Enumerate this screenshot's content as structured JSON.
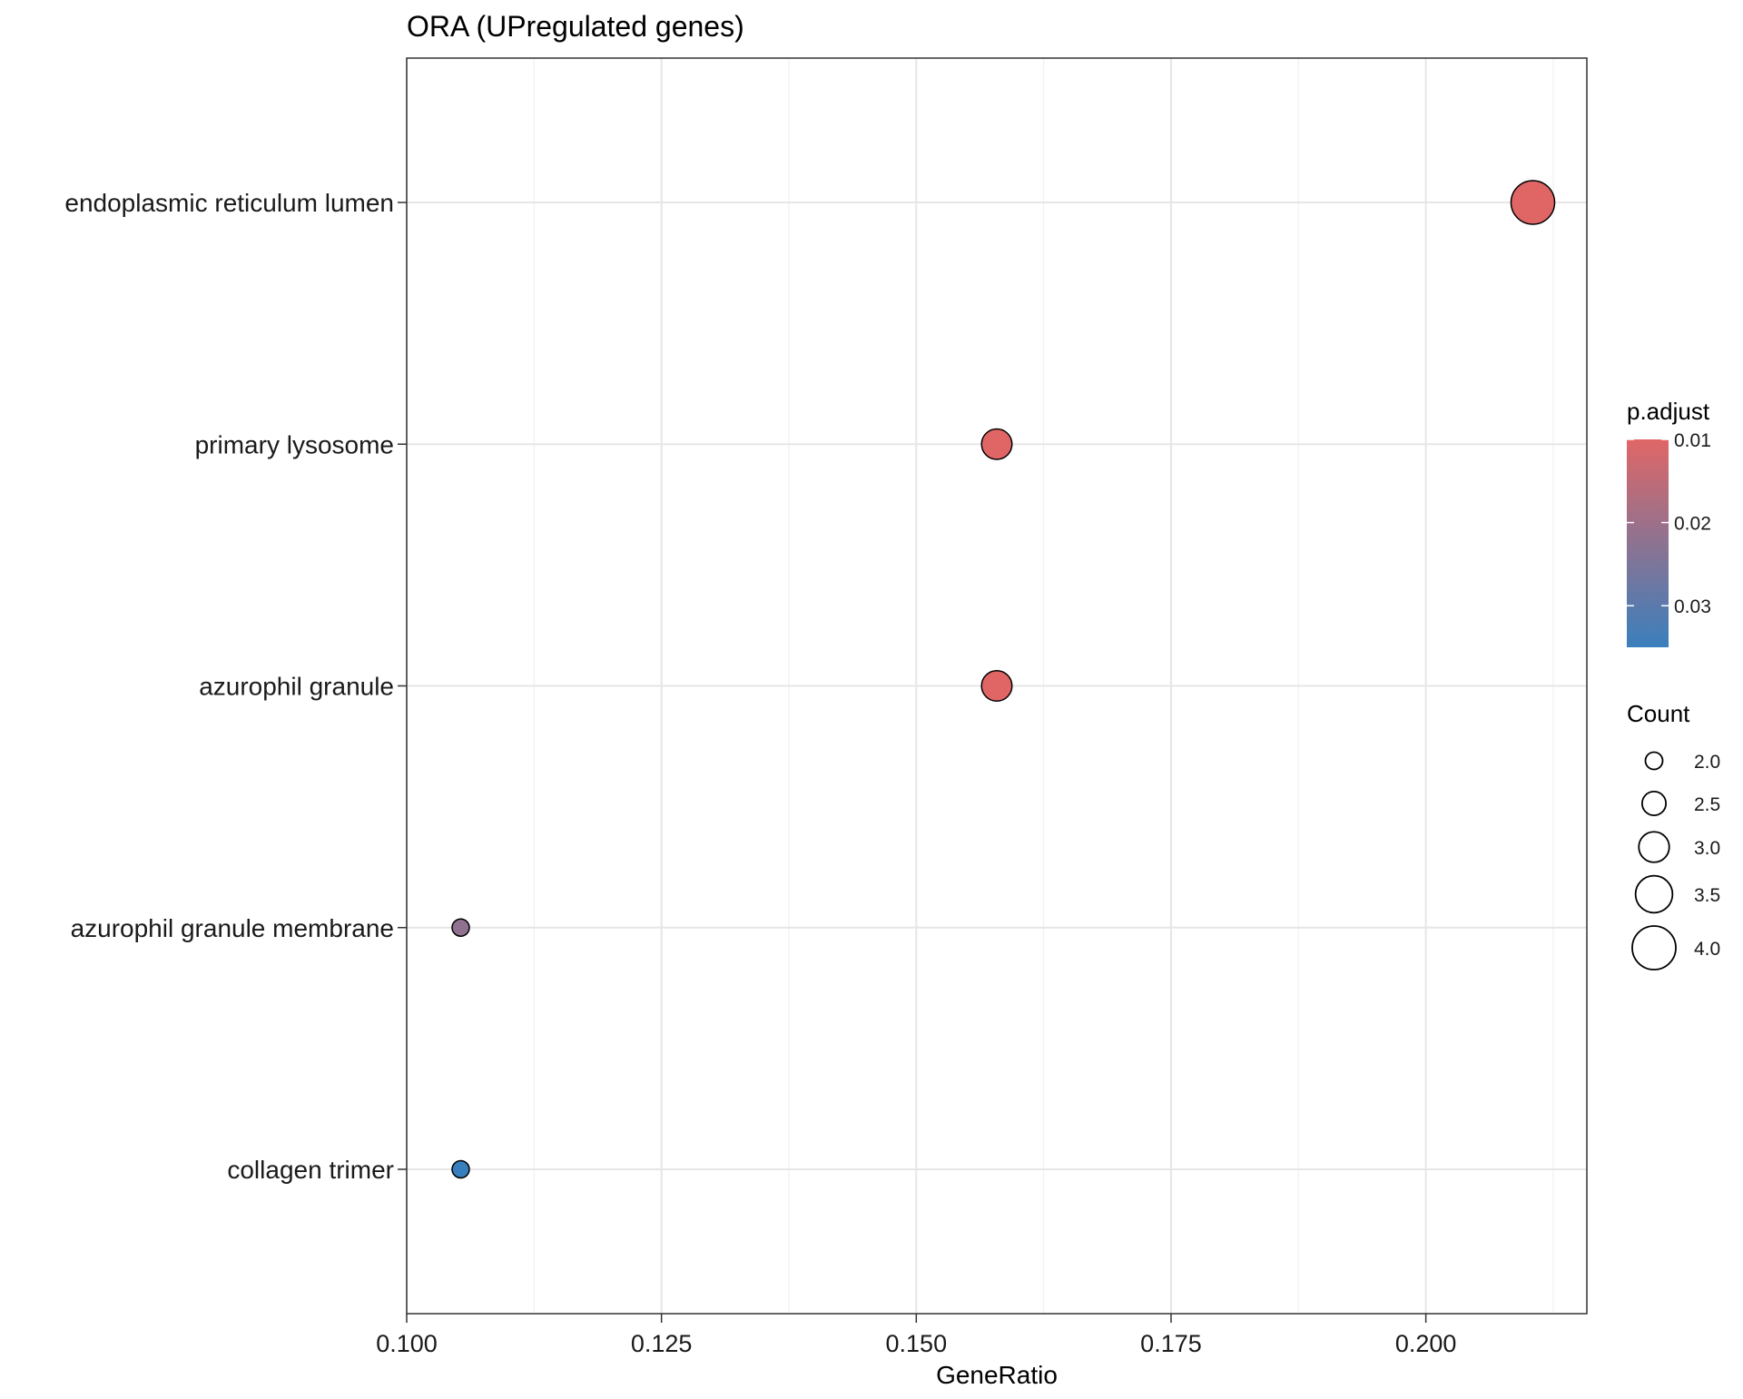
{
  "chart_data": {
    "type": "scatter",
    "title": "ORA (UPregulated genes)",
    "xlabel": "GeneRatio",
    "ylabel": "",
    "xlim": [
      0.1,
      0.2158
    ],
    "x_ticks": [
      0.1,
      0.125,
      0.15,
      0.175,
      0.2
    ],
    "x_tick_labels": [
      "0.100",
      "0.125",
      "0.150",
      "0.175",
      "0.200"
    ],
    "categories": [
      "endoplasmic reticulum lumen",
      "primary lysosome",
      "azurophil granule",
      "azurophil granule membrane",
      "collagen trimer"
    ],
    "points": [
      {
        "term": "endoplasmic reticulum lumen",
        "gene_ratio": 0.2105,
        "count": 4,
        "p_adjust": 0.01
      },
      {
        "term": "primary lysosome",
        "gene_ratio": 0.1579,
        "count": 3,
        "p_adjust": 0.01
      },
      {
        "term": "azurophil granule",
        "gene_ratio": 0.1579,
        "count": 3,
        "p_adjust": 0.01
      },
      {
        "term": "azurophil granule membrane",
        "gene_ratio": 0.1053,
        "count": 2,
        "p_adjust": 0.022
      },
      {
        "term": "collagen trimer",
        "gene_ratio": 0.1053,
        "count": 2,
        "p_adjust": 0.035
      }
    ],
    "color_legend": {
      "title": "p.adjust",
      "ticks": [
        0.01,
        0.02,
        0.03
      ],
      "tick_labels": [
        "0.01",
        "0.02",
        "0.03"
      ],
      "range": [
        0.01,
        0.035
      ],
      "low_color": "#e06666",
      "high_color": "#3a7fbd"
    },
    "size_legend": {
      "title": "Count",
      "values": [
        2.0,
        2.5,
        3.0,
        3.5,
        4.0
      ],
      "labels": [
        "2.0",
        "2.5",
        "3.0",
        "3.5",
        "4.0"
      ]
    },
    "grid": true,
    "legend_position": "right"
  }
}
